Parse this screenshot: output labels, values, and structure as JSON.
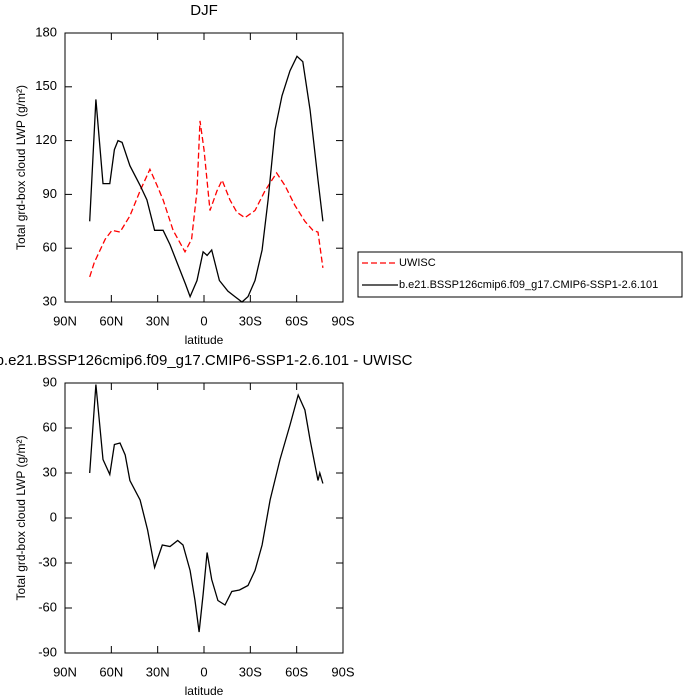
{
  "chart_data": [
    {
      "type": "line",
      "title": "DJF",
      "xlabel": "latitude",
      "ylabel": "Total grd-box cloud LWP (g/m²)",
      "xlim": [
        90,
        -90
      ],
      "ylim": [
        30,
        180
      ],
      "xticks": [
        {
          "value": 90,
          "label": "90N"
        },
        {
          "value": 60,
          "label": "60N"
        },
        {
          "value": 30,
          "label": "30N"
        },
        0,
        {
          "value": -30,
          "label": "30S"
        },
        {
          "value": -60,
          "label": "60S"
        },
        {
          "value": -90,
          "label": "90S"
        }
      ],
      "yticks": [
        30,
        60,
        90,
        120,
        150,
        180
      ],
      "legend": "right",
      "series": [
        {
          "name": "UWISC",
          "color": "#ff0000",
          "line_style": "dashed",
          "x": [
            74,
            71,
            64,
            59.6,
            54.4,
            48,
            41.4,
            35,
            30.4,
            26.5,
            20,
            12.3,
            8,
            4.5,
            2.6,
            0,
            -3.9,
            -8.4,
            -11.7,
            -16.8,
            -21.3,
            -26.5,
            -33,
            -39.5,
            -47,
            -52.4,
            -58.8,
            -65.3,
            -70.5,
            -73.8,
            -77
          ],
          "values": [
            44,
            52,
            65,
            70,
            69,
            78,
            92,
            104,
            95,
            87,
            70,
            58,
            65,
            92,
            131,
            115,
            81,
            92,
            98,
            87,
            80,
            77,
            81,
            92,
            102,
            95,
            84,
            75,
            70,
            69,
            49
          ]
        },
        {
          "name": "b.e21.BSSP126cmip6.f09_g17.CMIP6-SSP1-2.6.101",
          "color": "#000000",
          "line_style": "solid",
          "x": [
            74,
            70,
            65.4,
            61,
            58,
            55.7,
            53,
            48,
            41.4,
            37,
            32,
            26.5,
            22,
            17.5,
            12,
            9,
            4.5,
            0.6,
            -2,
            -5,
            -10,
            -15.5,
            -20,
            -24.6,
            -28.5,
            -33,
            -37.6,
            -41.5,
            -46,
            -50.5,
            -55.7,
            -60.2,
            -64,
            -68.7,
            -73.8,
            -77
          ],
          "values": [
            75,
            143,
            96,
            96,
            115,
            120,
            119,
            106,
            95,
            87,
            70,
            70,
            62,
            52,
            40,
            33,
            42,
            58,
            56,
            59,
            42,
            36,
            33,
            30,
            33,
            42,
            59,
            87,
            126,
            145,
            159,
            167,
            164,
            137,
            98,
            75
          ]
        }
      ]
    },
    {
      "type": "line",
      "title": "b.e21.BSSP126cmip6.f09_g17.CMIP6-SSP1-2.6.101 - UWISC",
      "xlabel": "latitude",
      "ylabel": "Total grd-box cloud LWP (g/m²)",
      "xlim": [
        90,
        -90
      ],
      "ylim": [
        -90,
        90
      ],
      "xticks": [
        {
          "value": 90,
          "label": "90N"
        },
        {
          "value": 60,
          "label": "60N"
        },
        {
          "value": 30,
          "label": "30N"
        },
        0,
        {
          "value": -30,
          "label": "30S"
        },
        {
          "value": -60,
          "label": "60S"
        },
        {
          "value": -90,
          "label": "90S"
        }
      ],
      "yticks": [
        -90,
        -60,
        -30,
        0,
        30,
        60,
        90
      ],
      "series": [
        {
          "color": "#000000",
          "line_style": "solid",
          "x": [
            74,
            70,
            65.4,
            61,
            58,
            54.4,
            51,
            48,
            41.4,
            36.5,
            32,
            27,
            22,
            17,
            13.6,
            9,
            5.8,
            3.2,
            0.6,
            -2,
            -5,
            -9,
            -13.6,
            -18,
            -23,
            -28.5,
            -33,
            -37.6,
            -42.8,
            -49.2,
            -55.7,
            -61,
            -65.3,
            -68.7,
            -73.8,
            -75,
            -77
          ],
          "values": [
            30,
            89,
            39,
            29,
            49,
            50,
            42,
            25,
            12,
            -8,
            -33,
            -18,
            -19,
            -15,
            -18,
            -35,
            -55,
            -76,
            -51,
            -23,
            -41,
            -55,
            -58,
            -49,
            -48,
            -45,
            -35,
            -18,
            12,
            39,
            62,
            82,
            72,
            52,
            25,
            30,
            23
          ]
        }
      ]
    }
  ]
}
